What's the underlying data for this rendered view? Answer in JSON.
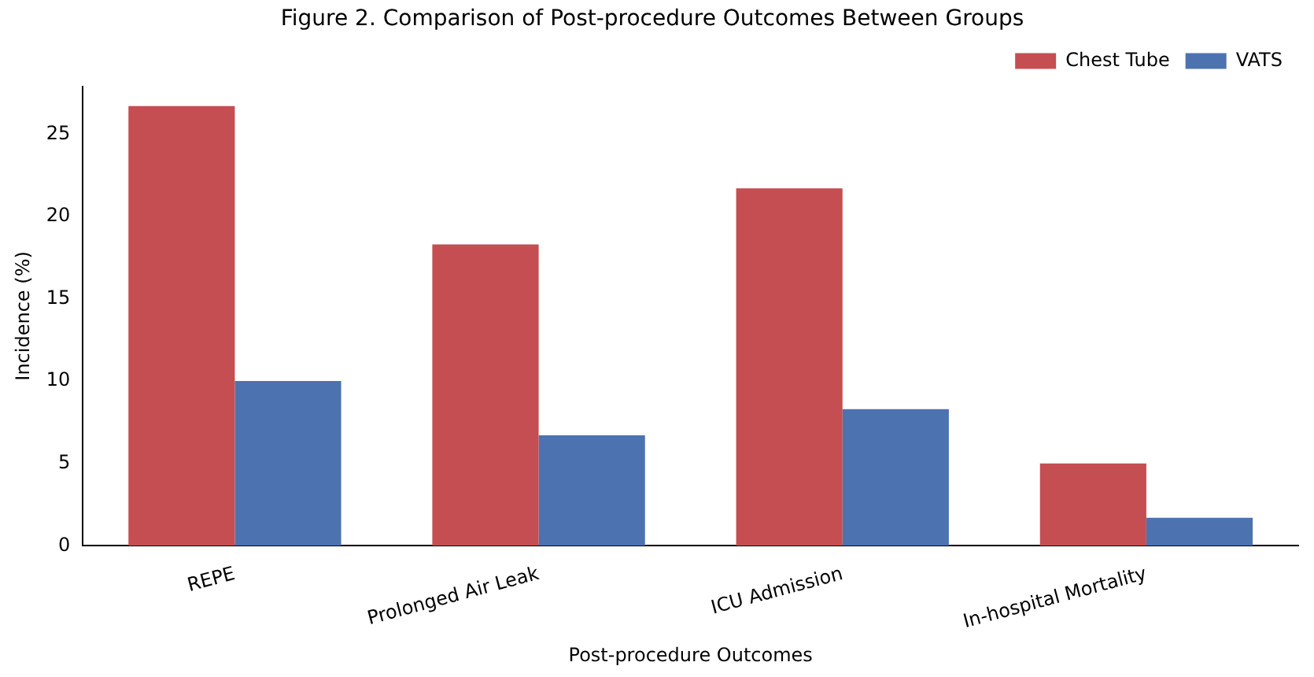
{
  "chart_data": {
    "type": "bar",
    "title": "Figure 2. Comparison of Post-procedure Outcomes Between Groups",
    "xlabel": "Post-procedure Outcomes",
    "ylabel": "Incidence (%)",
    "categories": [
      "REPE",
      "Prolonged Air Leak",
      "ICU Admission",
      "In-hospital Mortality"
    ],
    "series": [
      {
        "name": "Chest Tube",
        "color": "#c44e52",
        "values": [
          26.7,
          18.3,
          21.7,
          5.0
        ]
      },
      {
        "name": "VATS",
        "color": "#4c72b0",
        "values": [
          10.0,
          6.7,
          8.3,
          1.7
        ]
      }
    ],
    "ylim": [
      0,
      27.9
    ],
    "yticks": [
      0,
      5,
      10,
      15,
      20,
      25
    ],
    "grid": false,
    "legend": "top right"
  }
}
